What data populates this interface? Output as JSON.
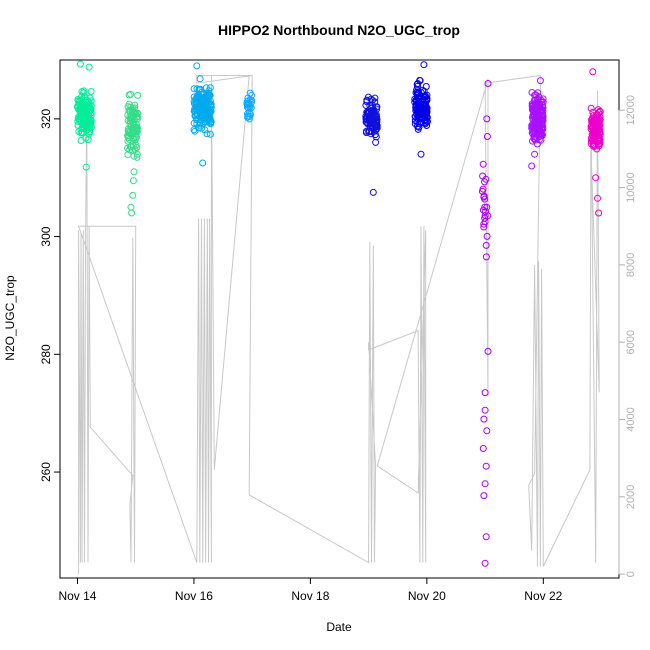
{
  "chart_data": {
    "type": "scatter",
    "title": "HIPPO2 Northbound N2O_UGC_trop",
    "xlabel": "Date",
    "ylabel": "N2O_UGC_trop",
    "x_ticks": [
      {
        "label": "Nov 14",
        "value": 14
      },
      {
        "label": "Nov 16",
        "value": 16
      },
      {
        "label": "Nov 18",
        "value": 18
      },
      {
        "label": "Nov 20",
        "value": 20
      },
      {
        "label": "Nov 22",
        "value": 22
      }
    ],
    "xlim": [
      13.7,
      23.3
    ],
    "ylim": [
      242,
      330
    ],
    "y_ticks": [
      260,
      280,
      300,
      320
    ],
    "y2lim": [
      -100,
      13300
    ],
    "y2_ticks": [
      0,
      2000,
      4000,
      6000,
      8000,
      10000,
      12000
    ],
    "y2_color": "#b0b0b0",
    "series": [
      {
        "color": "#00ee99",
        "x_center": 14.12,
        "x_spread": 0.12,
        "y_center": 320.5,
        "y_spread": 3.0,
        "n": 140,
        "outliers": [
          [
            14.05,
            329.3
          ],
          [
            14.15,
            311.8
          ],
          [
            14.2,
            328.8
          ]
        ]
      },
      {
        "color": "#33dd88",
        "x_center": 14.95,
        "x_spread": 0.09,
        "y_center": 319.0,
        "y_spread": 4.0,
        "n": 90,
        "outliers": [
          [
            14.92,
            305.0
          ],
          [
            14.95,
            307.0
          ],
          [
            14.93,
            304.0
          ],
          [
            14.96,
            309.5
          ],
          [
            14.97,
            311.0
          ]
        ]
      },
      {
        "color": "#00aaee",
        "x_center": 16.15,
        "x_spread": 0.15,
        "y_center": 322.0,
        "y_spread": 3.0,
        "n": 170,
        "outliers": [
          [
            16.05,
            329.0
          ],
          [
            16.15,
            312.5
          ]
        ]
      },
      {
        "color": "#11aaff",
        "x_center": 16.95,
        "x_spread": 0.04,
        "y_center": 322.0,
        "y_spread": 2.0,
        "n": 30,
        "outliers": []
      },
      {
        "color": "#1111dd",
        "x_center": 19.05,
        "x_spread": 0.1,
        "y_center": 320.0,
        "y_spread": 2.5,
        "n": 110,
        "outliers": [
          [
            19.08,
            307.5
          ],
          [
            19.12,
            316.0
          ]
        ]
      },
      {
        "color": "#0000ee",
        "x_center": 19.9,
        "x_spread": 0.11,
        "y_center": 322.0,
        "y_spread": 3.0,
        "n": 130,
        "outliers": [
          [
            19.95,
            329.2
          ],
          [
            19.9,
            314.0
          ]
        ]
      },
      {
        "color": "#aa00ee",
        "x_center": 21.0,
        "x_spread": 0.05,
        "y_center": 305.0,
        "y_spread": 6.0,
        "n": 20,
        "outliers": [
          [
            21.0,
            244.5
          ],
          [
            21.02,
            249.0
          ],
          [
            20.98,
            256.0
          ],
          [
            21.0,
            258.0
          ],
          [
            21.02,
            261.0
          ],
          [
            20.97,
            264.0
          ],
          [
            21.03,
            267.0
          ],
          [
            20.98,
            269.0
          ],
          [
            21.0,
            270.5
          ],
          [
            21.0,
            273.5
          ],
          [
            21.05,
            280.5
          ],
          [
            21.02,
            298.5
          ],
          [
            21.0,
            302.5
          ],
          [
            21.05,
            326.0
          ],
          [
            21.03,
            320.0
          ],
          [
            21.04,
            317.0
          ]
        ]
      },
      {
        "color": "#aa11ff",
        "x_center": 21.9,
        "x_spread": 0.1,
        "y_center": 320.0,
        "y_spread": 3.0,
        "n": 160,
        "outliers": [
          [
            21.95,
            326.5
          ],
          [
            21.8,
            312.0
          ],
          [
            21.85,
            314.0
          ]
        ]
      },
      {
        "color": "#ee00cc",
        "x_center": 22.9,
        "x_spread": 0.08,
        "y_center": 318.5,
        "y_spread": 3.0,
        "n": 110,
        "outliers": [
          [
            22.85,
            328.0
          ],
          [
            22.95,
            304.0
          ],
          [
            22.93,
            306.5
          ],
          [
            22.9,
            310.0
          ]
        ]
      }
    ],
    "altitude_trace": {
      "color": "#c8c8c8",
      "points": [
        [
          14.02,
          12.5
        ],
        [
          14.02,
          8900
        ],
        [
          14.05,
          300
        ],
        [
          14.06,
          8800
        ],
        [
          14.08,
          300
        ],
        [
          14.1,
          8900
        ],
        [
          14.12,
          300
        ],
        [
          14.14,
          8950
        ],
        [
          14.16,
          12000
        ],
        [
          14.18,
          300
        ],
        [
          14.2,
          9000
        ],
        [
          14.22,
          3800
        ],
        [
          14.95,
          2550
        ],
        [
          14.9,
          1800
        ],
        [
          14.92,
          300
        ],
        [
          14.95,
          8700
        ],
        [
          14.98,
          300
        ],
        [
          15.0,
          8900
        ],
        [
          15.0,
          9000
        ],
        [
          14.02,
          9000
        ],
        [
          16.05,
          300
        ],
        [
          16.08,
          9200
        ],
        [
          16.1,
          300
        ],
        [
          16.13,
          9200
        ],
        [
          16.15,
          300
        ],
        [
          16.18,
          9200
        ],
        [
          16.2,
          300
        ],
        [
          16.23,
          9200
        ],
        [
          16.25,
          300
        ],
        [
          16.27,
          9200
        ],
        [
          16.3,
          300
        ],
        [
          16.3,
          12900
        ],
        [
          16.35,
          2700
        ],
        [
          16.95,
          12900
        ],
        [
          16.05,
          12900
        ],
        [
          16.05,
          12700
        ],
        [
          17.0,
          12900
        ],
        [
          16.95,
          2050
        ],
        [
          19.0,
          300
        ],
        [
          19.02,
          8600
        ],
        [
          19.05,
          300
        ],
        [
          19.08,
          8500
        ],
        [
          19.1,
          300
        ],
        [
          19.12,
          2800
        ],
        [
          19.0,
          6000
        ],
        [
          19.0,
          5800
        ],
        [
          19.85,
          6300
        ],
        [
          19.88,
          300
        ],
        [
          19.9,
          9000
        ],
        [
          19.93,
          300
        ],
        [
          19.95,
          9000
        ],
        [
          19.98,
          300
        ],
        [
          19.98,
          8900
        ],
        [
          19.85,
          2100
        ],
        [
          19.15,
          2800
        ],
        [
          21.05,
          12800
        ],
        [
          21.05,
          4600
        ],
        [
          21.0,
          12700
        ],
        [
          21.95,
          12900
        ],
        [
          21.95,
          12700
        ],
        [
          21.85,
          2600
        ],
        [
          21.75,
          2300
        ],
        [
          21.8,
          600
        ],
        [
          21.85,
          8000
        ],
        [
          21.9,
          200
        ],
        [
          21.92,
          8100
        ],
        [
          21.95,
          200
        ],
        [
          21.97,
          7900
        ],
        [
          22.0,
          200
        ],
        [
          22.0,
          200
        ],
        [
          22.8,
          2700
        ],
        [
          22.82,
          12000
        ],
        [
          22.9,
          300
        ],
        [
          22.93,
          12500
        ],
        [
          22.95,
          7600
        ],
        [
          22.96,
          4700
        ],
        [
          22.82,
          11000
        ]
      ]
    }
  }
}
